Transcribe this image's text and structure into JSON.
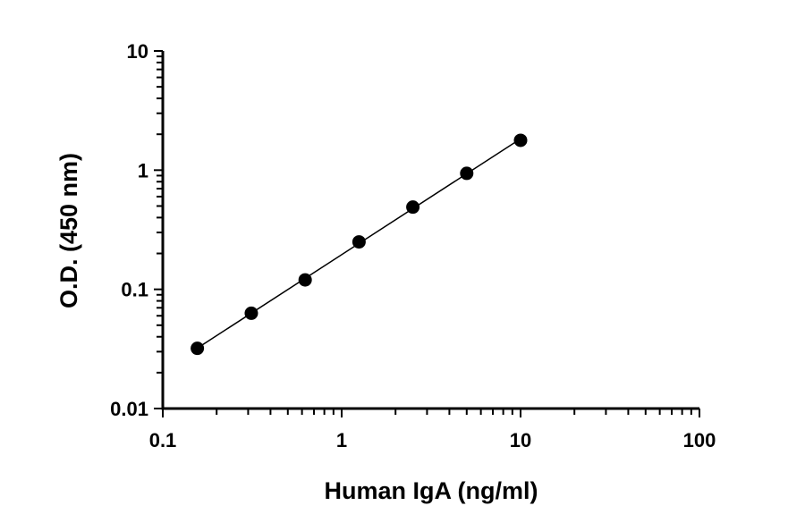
{
  "chart_data": {
    "type": "scatter",
    "title": "",
    "xlabel": "Human IgA (ng/ml)",
    "ylabel": "O.D. (450 nm)",
    "xscale": "log",
    "yscale": "log",
    "xlim": [
      0.1,
      100
    ],
    "ylim": [
      0.01,
      10
    ],
    "grid": false,
    "x_ticks": [
      {
        "value": 0.1,
        "label": "0.1"
      },
      {
        "value": 1,
        "label": "1"
      },
      {
        "value": 10,
        "label": "10"
      },
      {
        "value": 100,
        "label": "100"
      }
    ],
    "y_ticks": [
      {
        "value": 0.01,
        "label": "0.01"
      },
      {
        "value": 0.1,
        "label": "0.1"
      },
      {
        "value": 1,
        "label": "1"
      },
      {
        "value": 10,
        "label": "10"
      }
    ],
    "series": [
      {
        "x": [
          0.156,
          0.3125,
          0.625,
          1.25,
          2.5,
          5,
          10
        ],
        "y": [
          0.032,
          0.063,
          0.12,
          0.25,
          0.49,
          0.94,
          1.78
        ],
        "marker": "circle",
        "fit_line": true,
        "color": "#000000"
      }
    ]
  }
}
